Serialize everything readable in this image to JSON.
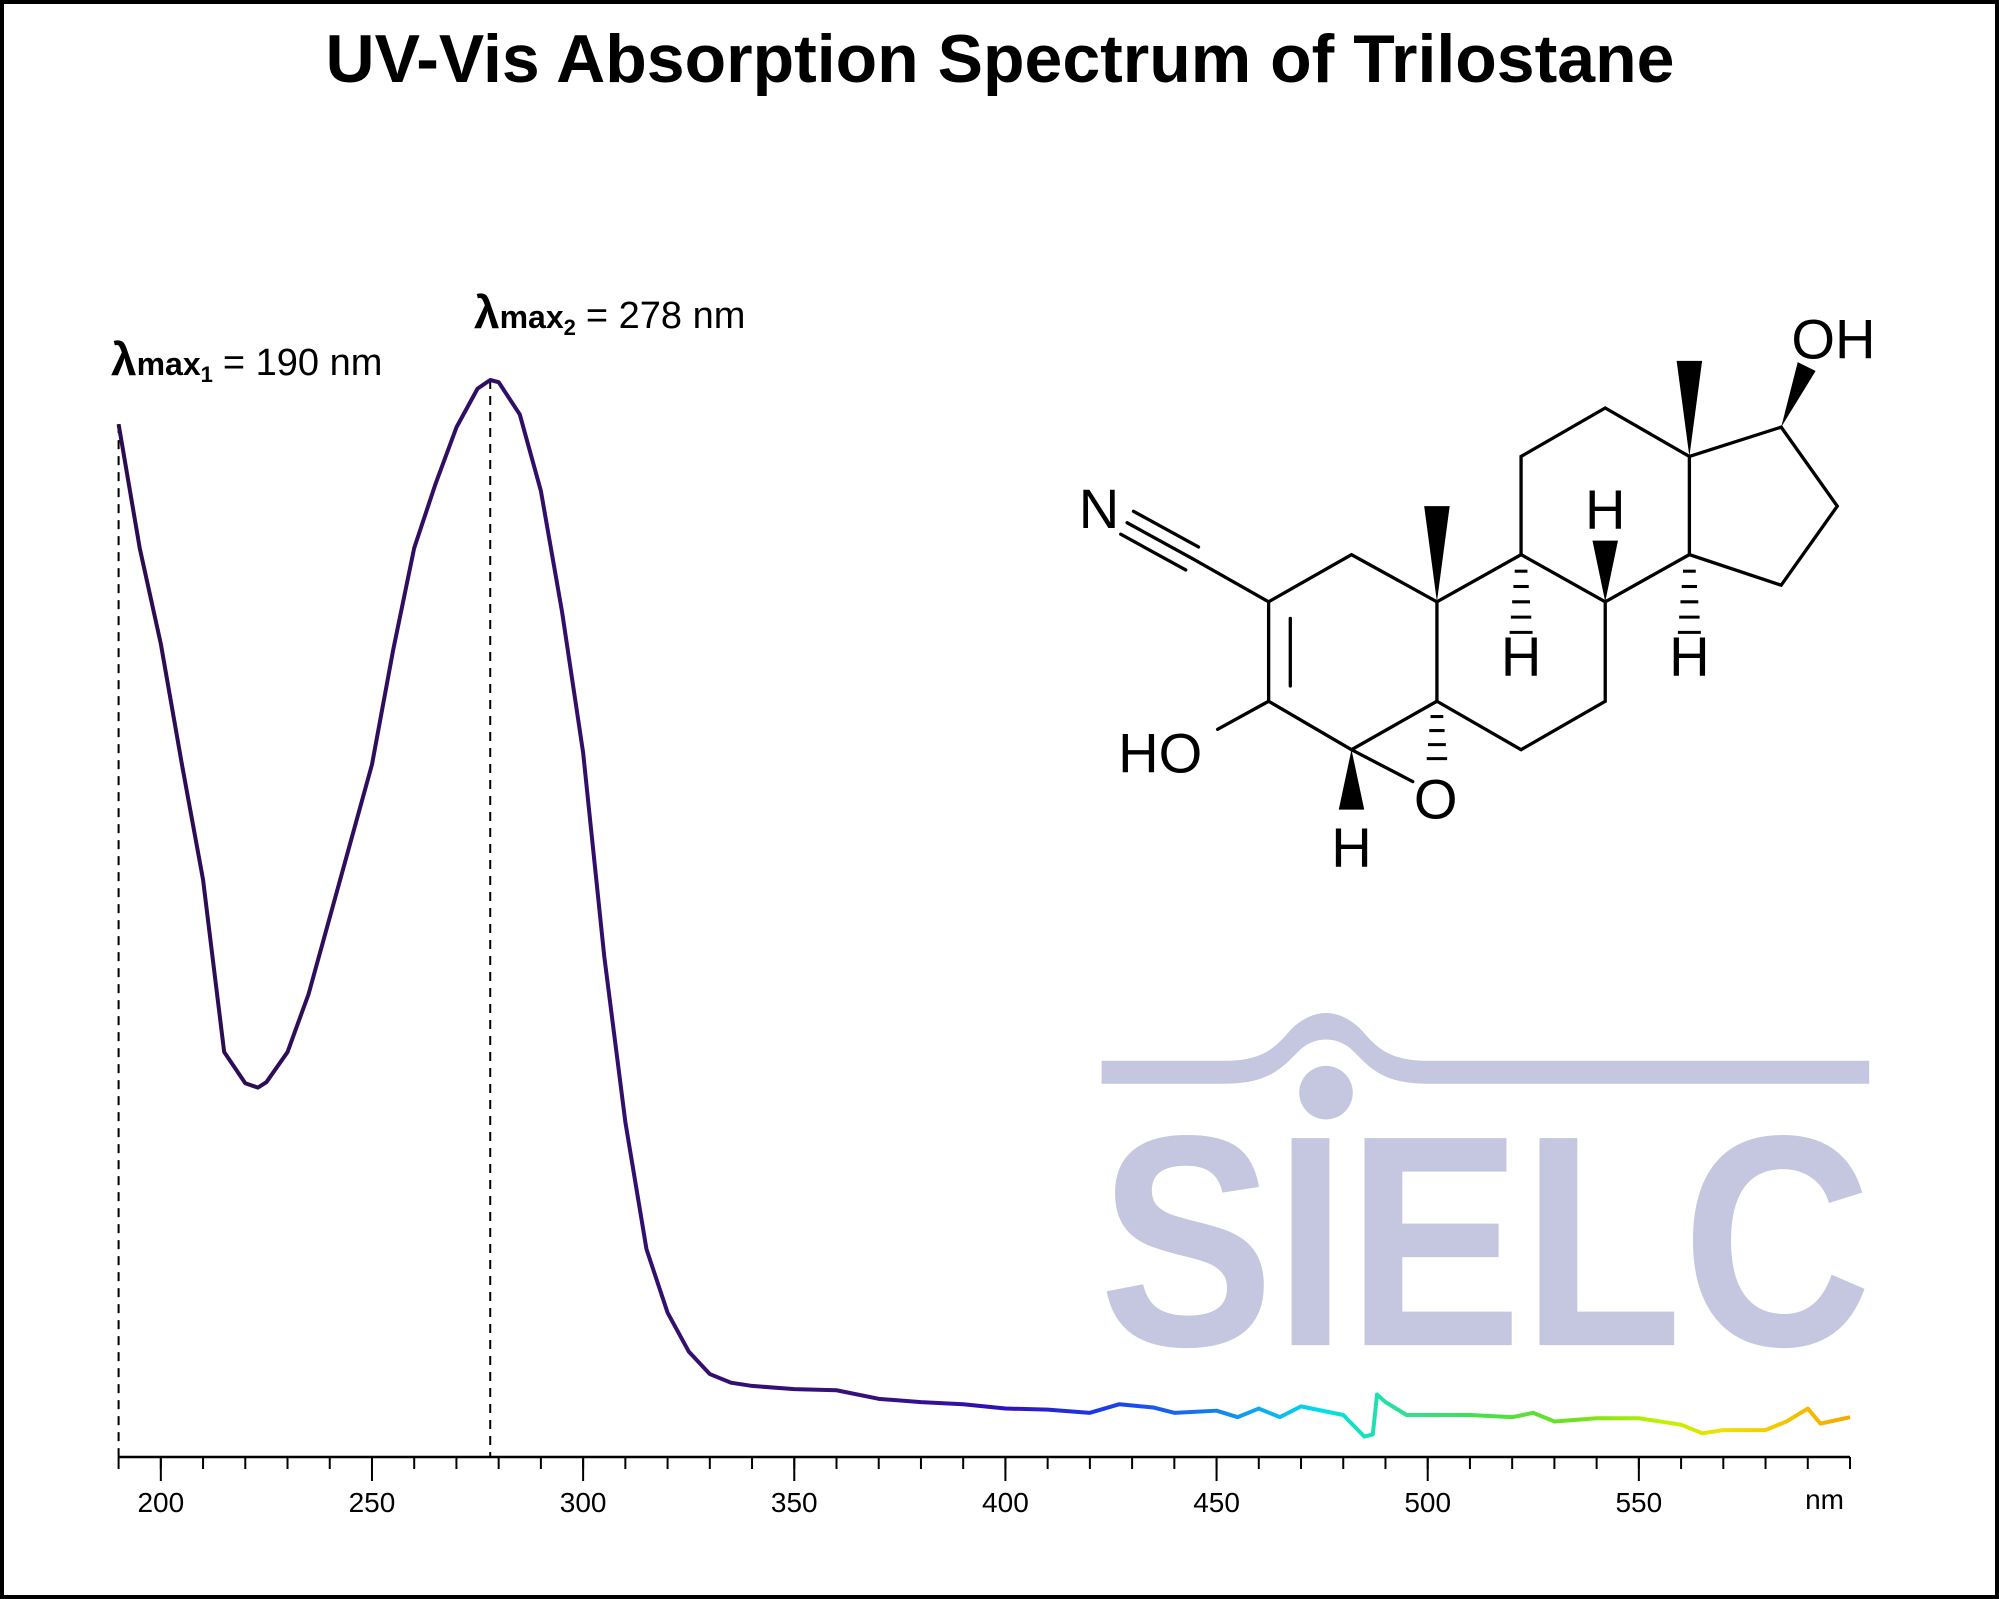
{
  "chart_data": {
    "type": "line",
    "title": "UV-Vis Absorption Spectrum of Trilostane",
    "x_unit_label": "nm",
    "xlim": [
      190,
      600
    ],
    "ylim": [
      0,
      1
    ],
    "xticks": [
      200,
      250,
      300,
      350,
      400,
      450,
      500,
      550
    ],
    "xminorticks": [
      190,
      200,
      210,
      220,
      230,
      240,
      250,
      260,
      270,
      280,
      290,
      300,
      310,
      320,
      330,
      340,
      350,
      360,
      370,
      380,
      390,
      400,
      410,
      420,
      430,
      440,
      450,
      460,
      470,
      480,
      490,
      500,
      510,
      520,
      530,
      540,
      550,
      560,
      570,
      580,
      590,
      600
    ],
    "x": [
      190,
      195,
      200,
      205,
      210,
      215,
      220,
      223,
      225,
      230,
      235,
      240,
      245,
      250,
      255,
      260,
      265,
      270,
      275,
      278,
      280,
      285,
      290,
      295,
      300,
      305,
      310,
      315,
      320,
      325,
      330,
      335,
      340,
      350,
      360,
      370,
      380,
      390,
      400,
      410,
      420,
      427,
      435,
      440,
      450,
      455,
      460,
      465,
      470,
      480,
      485,
      487,
      488,
      490,
      495,
      500,
      510,
      520,
      525,
      530,
      540,
      550,
      560,
      565,
      570,
      580,
      585,
      590,
      593,
      600
    ],
    "series": [
      {
        "values": [
          0.959,
          0.844,
          0.755,
          0.643,
          0.536,
          0.376,
          0.347,
          0.343,
          0.348,
          0.376,
          0.43,
          0.501,
          0.572,
          0.643,
          0.749,
          0.844,
          0.903,
          0.956,
          0.992,
          1.0,
          0.998,
          0.968,
          0.897,
          0.785,
          0.654,
          0.465,
          0.311,
          0.193,
          0.134,
          0.098,
          0.077,
          0.069,
          0.066,
          0.063,
          0.062,
          0.054,
          0.051,
          0.049,
          0.045,
          0.044,
          0.041,
          0.049,
          0.046,
          0.041,
          0.043,
          0.037,
          0.045,
          0.037,
          0.047,
          0.039,
          0.019,
          0.021,
          0.058,
          0.051,
          0.039,
          0.039,
          0.039,
          0.037,
          0.041,
          0.033,
          0.036,
          0.036,
          0.03,
          0.022,
          0.025,
          0.025,
          0.033,
          0.045,
          0.031,
          0.037
        ],
        "gradient": [
          {
            "x": 190,
            "color": "#2b0c4f"
          },
          {
            "x": 370,
            "color": "#36107a"
          },
          {
            "x": 400,
            "color": "#3010c0"
          },
          {
            "x": 425,
            "color": "#1a40e8"
          },
          {
            "x": 445,
            "color": "#1670f0"
          },
          {
            "x": 460,
            "color": "#10a8f0"
          },
          {
            "x": 475,
            "color": "#00e0e8"
          },
          {
            "x": 495,
            "color": "#30e090"
          },
          {
            "x": 510,
            "color": "#40e050"
          },
          {
            "x": 535,
            "color": "#70e020"
          },
          {
            "x": 555,
            "color": "#c0f000"
          },
          {
            "x": 570,
            "color": "#f0e000"
          },
          {
            "x": 600,
            "color": "#f5a800"
          }
        ]
      }
    ],
    "annotations": [
      {
        "symbol": "λ",
        "sub": "max",
        "index": "1",
        "text": "= 190 nm",
        "x": 190
      },
      {
        "symbol": "λ",
        "sub": "max",
        "index": "2",
        "text": "= 278 nm",
        "x": 278
      }
    ]
  },
  "structure": {
    "labels": [
      "N",
      "HO",
      "O",
      "H",
      "H",
      "H",
      "H",
      "OH"
    ]
  },
  "logo": {
    "text": "SIELC"
  }
}
